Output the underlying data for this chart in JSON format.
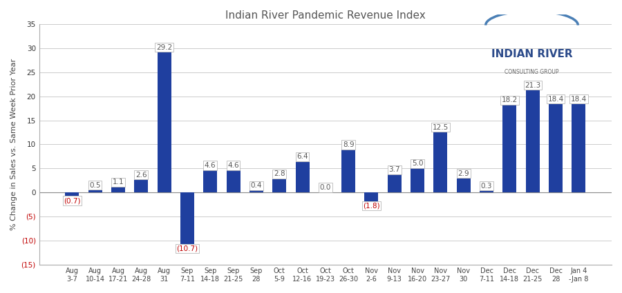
{
  "title": "Indian River Pandemic Revenue Index",
  "ylabel": "% Change in Sales vs. Same Week Prior Year",
  "categories": [
    "Aug\n3-7",
    "Aug\n10-14",
    "Aug\n17-21",
    "Aug\n24-28",
    "Aug\n31",
    "Sep\n7-11",
    "Sep\n14-18",
    "Sep\n21-25",
    "Sep\n28",
    "Oct\n5-9",
    "Oct\n12-16",
    "Oct\n19-23",
    "Oct\n26-30",
    "Nov\n2-6",
    "Nov\n9-13",
    "Nov\n16-20",
    "Nov\n23-27",
    "Nov\n30",
    "Dec\n7-11",
    "Dec\n14-18",
    "Dec\n21-25",
    "Dec\n28",
    "Jan 4\n-Jan 8"
  ],
  "values": [
    -0.7,
    0.5,
    1.1,
    2.6,
    29.2,
    -10.7,
    4.6,
    4.6,
    0.4,
    2.8,
    6.4,
    0.0,
    8.9,
    -1.8,
    3.7,
    5.0,
    12.5,
    2.9,
    0.3,
    18.2,
    21.3,
    18.4,
    18.4
  ],
  "bar_color": "#1F3F9F",
  "neg_label_color": "#C00000",
  "pos_label_color": "#595959",
  "label_box_color": "#FFFFFF",
  "label_box_edge_color": "#AAAAAA",
  "ylim": [
    -15,
    35
  ],
  "yticks": [
    -15,
    -10,
    -5,
    0,
    5,
    10,
    15,
    20,
    25,
    30,
    35
  ],
  "ytick_labels": [
    "(15)",
    "(10)",
    "(5)",
    "0",
    "5",
    "10",
    "15",
    "20",
    "25",
    "30",
    "35"
  ],
  "bg_color": "#FFFFFF",
  "grid_color": "#CCCCCC",
  "title_fontsize": 11,
  "label_fontsize": 7.5,
  "tick_fontsize": 7.5,
  "ylabel_fontsize": 8
}
